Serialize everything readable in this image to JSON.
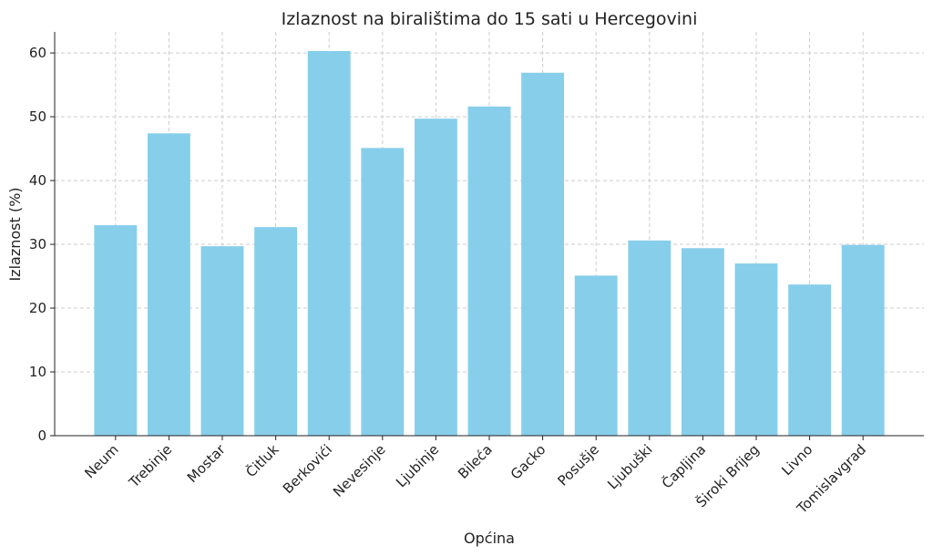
{
  "chart_data": {
    "type": "bar",
    "title": "Izlaznost na biralištima do 15 sati u Hercegovini",
    "x_label": "Općina",
    "y_label": "Izlaznost (%)",
    "categories": [
      "Neum",
      "Trebinje",
      "Mostar",
      "Čitluk",
      "Berkovići",
      "Nevesinje",
      "Ljubinje",
      "Bileća",
      "Gacko",
      "Posušje",
      "Ljubuški",
      "Čapljina",
      "Široki Brijeg",
      "Livno",
      "Tomislavgrad"
    ],
    "values": [
      33.0,
      47.4,
      29.7,
      32.7,
      60.3,
      45.1,
      49.7,
      51.6,
      56.9,
      25.1,
      30.6,
      29.4,
      27.0,
      23.7,
      29.9
    ],
    "color": "#87ceeb",
    "ylim": [
      0,
      63.3
    ],
    "yticks": [
      0,
      10,
      20,
      30,
      40,
      50,
      60
    ],
    "grid": true
  }
}
